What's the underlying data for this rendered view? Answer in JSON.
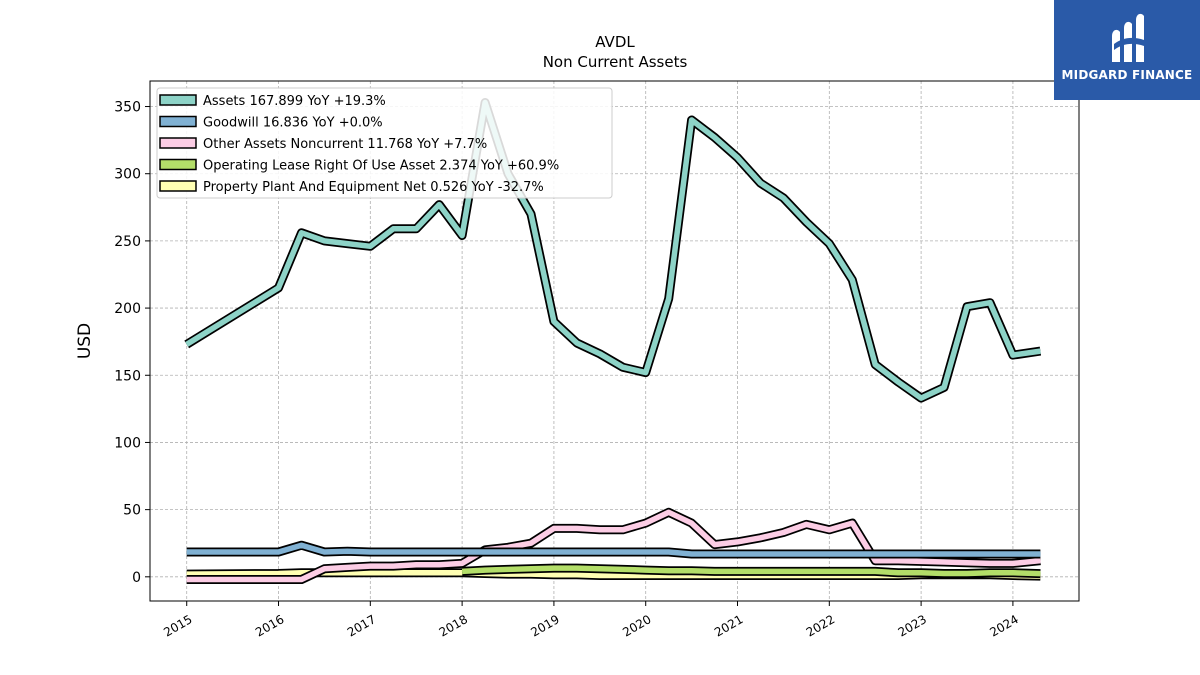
{
  "brand": {
    "name": "MIDGARD FINANCE",
    "color": "#2a5aa8"
  },
  "chart_data": {
    "type": "line",
    "title": "AVDL",
    "subtitle": "Non Current  Assets",
    "ylabel": "USD",
    "xlabel": "",
    "xlim": [
      2014.6,
      2024.72
    ],
    "ylim": [
      -18,
      369
    ],
    "grid": true,
    "legend_position": "top-left",
    "x_ticks": [
      2015,
      2016,
      2017,
      2018,
      2019,
      2020,
      2021,
      2022,
      2023,
      2024
    ],
    "x_tick_labels": [
      "2015",
      "2016",
      "2017",
      "2018",
      "2019",
      "2020",
      "2021",
      "2022",
      "2023",
      "2024"
    ],
    "y_ticks": [
      0,
      50,
      100,
      150,
      200,
      250,
      300,
      350
    ],
    "y_tick_labels": [
      "0",
      "50",
      "100",
      "150",
      "200",
      "250",
      "300",
      "350"
    ],
    "series": [
      {
        "name": "Assets",
        "legend": "Assets  167.899 YoY +19.3%",
        "color": "#8dd3c7",
        "x": [
          2015.0,
          2016.0,
          2016.25,
          2016.5,
          2016.75,
          2017.0,
          2017.25,
          2017.5,
          2017.75,
          2018.0,
          2018.25,
          2018.5,
          2018.75,
          2019.0,
          2019.25,
          2019.5,
          2019.75,
          2020.0,
          2020.25,
          2020.5,
          2020.75,
          2021.0,
          2021.25,
          2021.5,
          2021.75,
          2022.0,
          2022.25,
          2022.5,
          2022.75,
          2023.0,
          2023.25,
          2023.5,
          2023.75,
          2024.0,
          2024.3
        ],
        "values": [
          173,
          215,
          256,
          250,
          248,
          246,
          259,
          259,
          277,
          254,
          353,
          300,
          270,
          190,
          174,
          166,
          156,
          152,
          207,
          340,
          327,
          312,
          293,
          282,
          264,
          248,
          221,
          158,
          145,
          133,
          141,
          201,
          204,
          165,
          168
        ]
      },
      {
        "name": "Goodwill",
        "legend": "Goodwill  16.836 YoY +0.0%",
        "color": "#80b1d3",
        "x": [
          2015.0,
          2016.0,
          2016.25,
          2016.5,
          2016.75,
          2017.0,
          2017.25,
          2017.5,
          2017.75,
          2018.0,
          2018.25,
          2018.5,
          2018.75,
          2019.0,
          2019.25,
          2019.5,
          2019.75,
          2020.0,
          2020.25,
          2020.5,
          2020.75,
          2021.0,
          2021.25,
          2021.5,
          2021.75,
          2022.0,
          2022.25,
          2022.5,
          2022.75,
          2023.0,
          2023.25,
          2023.5,
          2023.75,
          2024.0,
          2024.3
        ],
        "values": [
          18.5,
          18.5,
          23.5,
          18.5,
          19,
          18.5,
          18.5,
          18.5,
          18.5,
          18.5,
          18.5,
          18.5,
          18.5,
          18.5,
          18.5,
          18.5,
          18.5,
          18.5,
          18.5,
          17,
          17,
          17,
          17,
          17,
          17,
          17,
          17,
          17,
          17,
          17,
          17,
          17,
          17,
          17,
          17
        ]
      },
      {
        "name": "Other Assets Noncurrent",
        "legend": "Other Assets Noncurrent  11.768 YoY +7.7%",
        "color": "#fccde5",
        "x": [
          2015.0,
          2016.0,
          2016.25,
          2016.5,
          2016.75,
          2017.0,
          2017.25,
          2017.5,
          2017.75,
          2018.0,
          2018.25,
          2018.5,
          2018.75,
          2019.0,
          2019.25,
          2019.5,
          2019.75,
          2020.0,
          2020.25,
          2020.5,
          2020.75,
          2021.0,
          2021.25,
          2021.5,
          2021.75,
          2022.0,
          2022.25,
          2022.5,
          2022.75,
          2023.0,
          2023.25,
          2023.5,
          2023.75,
          2024.0,
          2024.3
        ],
        "values": [
          -2,
          -2,
          -2,
          6,
          7,
          8,
          8,
          9,
          9,
          10,
          20,
          22,
          25,
          36,
          36,
          35,
          35,
          40,
          48,
          40,
          24,
          26,
          29,
          33,
          39,
          35,
          40,
          12,
          12,
          11.5,
          11,
          10.5,
          10,
          10,
          12
        ]
      },
      {
        "name": "Operating Lease Right Of Use Asset",
        "legend": "Operating Lease Right Of Use Asset  2.374 YoY +60.9%",
        "color": "#b3de69",
        "x": [
          2018.0,
          2018.25,
          2018.5,
          2018.75,
          2019.0,
          2019.25,
          2019.5,
          2019.75,
          2020.0,
          2020.25,
          2020.5,
          2020.75,
          2021.0,
          2021.25,
          2021.5,
          2021.75,
          2022.0,
          2022.25,
          2022.5,
          2022.75,
          2023.0,
          2023.25,
          2023.5,
          2023.75,
          2024.0,
          2024.3
        ],
        "values": [
          4,
          5,
          5.5,
          6,
          6.5,
          6.5,
          6,
          5.5,
          5,
          4.5,
          4.5,
          4,
          4,
          4,
          4,
          4,
          4,
          4,
          4,
          3,
          3,
          2.5,
          2.5,
          3,
          3,
          2.4
        ]
      },
      {
        "name": "Property Plant And Equipment Net",
        "legend": "Property Plant And Equipment Net  0.526 YoY -32.7%",
        "color": "#ffffb3",
        "x": [
          2015.0,
          2016.0,
          2016.25,
          2016.5,
          2016.75,
          2017.0,
          2017.25,
          2017.5,
          2017.75,
          2018.0,
          2018.25,
          2018.5,
          2018.75,
          2019.0,
          2019.25,
          2019.5,
          2019.75,
          2020.0,
          2020.25,
          2020.5,
          2020.75,
          2021.0,
          2021.25,
          2021.5,
          2021.75,
          2022.0,
          2022.25,
          2022.5,
          2022.75,
          2023.0,
          2023.25,
          2023.5,
          2023.75,
          2024.0,
          2024.3
        ],
        "values": [
          2,
          2.5,
          3,
          3,
          3,
          3,
          3,
          3,
          3,
          3,
          2.5,
          2,
          2,
          1.5,
          1.5,
          1,
          1,
          1,
          1,
          1,
          1,
          1,
          1,
          1,
          1,
          1,
          1,
          1,
          1,
          1.5,
          1.5,
          1.5,
          1.5,
          1,
          0.5
        ]
      }
    ]
  }
}
